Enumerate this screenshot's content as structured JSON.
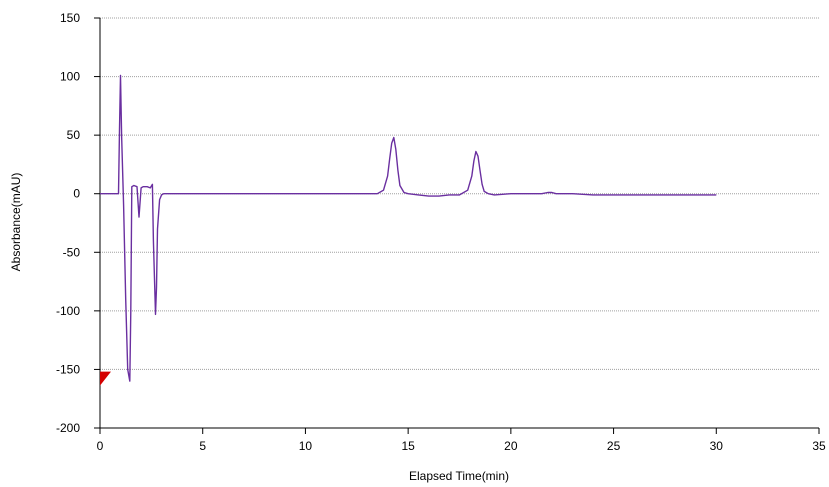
{
  "chart_data": {
    "type": "line",
    "title": "",
    "xlabel": "Elapsed Time(min)",
    "ylabel": "Absorbance(mAU)",
    "xlim": [
      0,
      35
    ],
    "ylim": [
      -200,
      150
    ],
    "x_ticks": [
      0,
      5,
      10,
      15,
      20,
      25,
      30,
      35
    ],
    "x_tick_labels": [
      "0",
      "5",
      "10",
      "15",
      "20",
      "25",
      "30",
      "35"
    ],
    "y_ticks": [
      -200,
      -150,
      -100,
      -50,
      0,
      50,
      100,
      150
    ],
    "y_tick_labels": [
      "-200",
      "-150",
      "-100",
      "-50",
      "0",
      "50",
      "100",
      "150"
    ],
    "grid": "horizontal dotted",
    "legend": "none",
    "series": [
      {
        "color": "#6a2fa0",
        "x": [
          0.0,
          0.5,
          0.9,
          0.95,
          1.0,
          1.05,
          1.15,
          1.25,
          1.35,
          1.45,
          1.5,
          1.55,
          1.65,
          1.8,
          1.9,
          2.0,
          2.1,
          2.3,
          2.45,
          2.55,
          2.6,
          2.7,
          2.75,
          2.8,
          2.9,
          3.0,
          3.1,
          3.3,
          3.6,
          4.0,
          5.0,
          6.0,
          7.0,
          8.0,
          9.0,
          10.0,
          11.0,
          12.0,
          13.0,
          13.5,
          13.8,
          14.0,
          14.1,
          14.2,
          14.3,
          14.4,
          14.5,
          14.6,
          14.8,
          15.0,
          15.5,
          16.0,
          16.5,
          17.0,
          17.5,
          17.9,
          18.1,
          18.2,
          18.3,
          18.4,
          18.5,
          18.6,
          18.7,
          18.9,
          19.2,
          20.0,
          21.0,
          21.5,
          21.8,
          22.0,
          22.2,
          23.0,
          24.0,
          25.0,
          26.0,
          27.0,
          28.0,
          29.0,
          30.0
        ],
        "y": [
          0,
          0,
          0,
          55,
          101,
          50,
          -10,
          -90,
          -150,
          -160,
          -100,
          6,
          7,
          6,
          -20,
          5,
          6,
          6,
          5,
          8,
          -40,
          -103,
          -80,
          -30,
          -5,
          -1,
          0,
          0,
          0,
          0,
          0,
          0,
          0,
          0,
          0,
          0,
          0,
          0,
          0,
          0,
          3,
          15,
          30,
          43,
          48,
          38,
          20,
          7,
          1,
          0,
          -1,
          -2,
          -2,
          -1,
          -1,
          3,
          15,
          28,
          36,
          32,
          20,
          8,
          2,
          0,
          -1,
          0,
          0,
          0,
          1,
          1,
          0,
          0,
          -1,
          -1,
          -1,
          -1,
          -1,
          -1,
          -1
        ]
      }
    ],
    "annotations": [
      {
        "type": "marker",
        "shape": "red-triangle",
        "x": 0,
        "y": -157
      }
    ]
  }
}
